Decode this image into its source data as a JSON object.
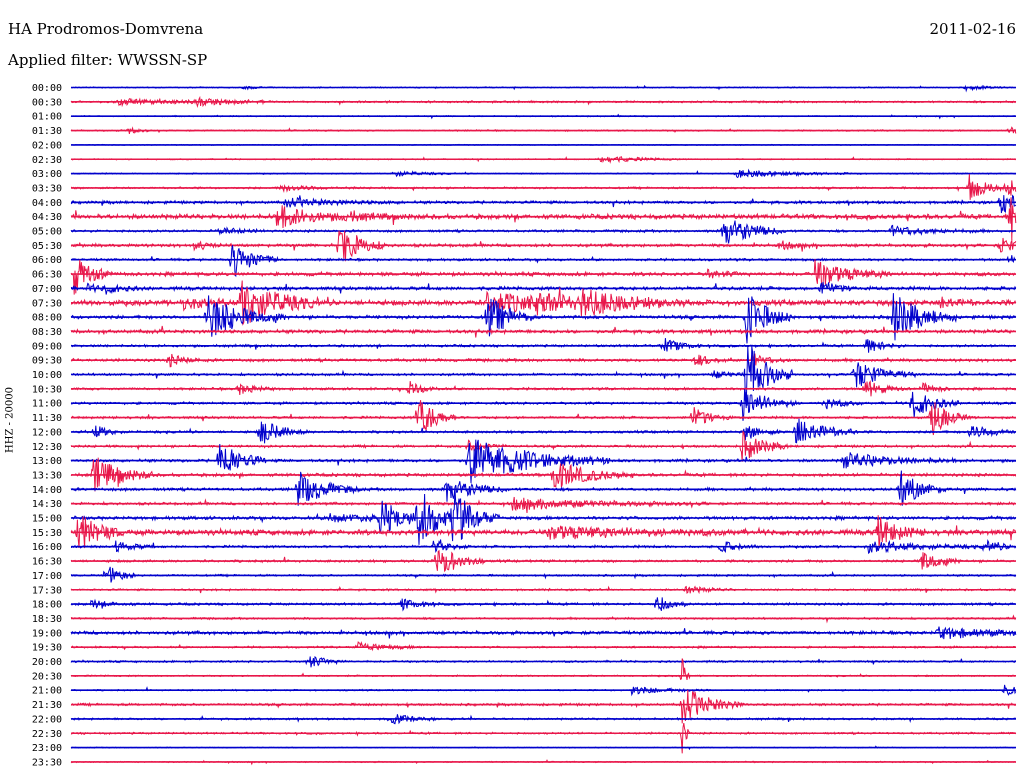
{
  "header": {
    "station": "HA Prodromos-Domvrena",
    "date": "2011-02-16",
    "filter_line": "Applied filter: WWSSN-SP"
  },
  "channel_label": "HHZ - 20000",
  "colors": {
    "trace_even": "#0000cc",
    "trace_odd": "#e8174a",
    "text": "#000000",
    "background": "#ffffff"
  },
  "chart_data": {
    "type": "line",
    "title": "HA Prodromos-Domvrena",
    "ylabel": "HHZ - 20000",
    "row_labels": [
      "00:00",
      "00:30",
      "01:00",
      "01:30",
      "02:00",
      "02:30",
      "03:00",
      "03:30",
      "04:00",
      "04:30",
      "05:00",
      "05:30",
      "06:00",
      "06:30",
      "07:00",
      "07:30",
      "08:00",
      "08:30",
      "09:00",
      "09:30",
      "10:00",
      "10:30",
      "11:00",
      "11:30",
      "12:00",
      "12:30",
      "13:00",
      "13:30",
      "14:00",
      "14:30",
      "15:00",
      "15:30",
      "16:00",
      "16:30",
      "17:00",
      "17:30",
      "18:00",
      "18:30",
      "19:00",
      "19:30",
      "20:00",
      "20:30",
      "21:00",
      "21:30",
      "22:00",
      "22:30",
      "23:00",
      "23:30"
    ],
    "row_minutes": 30,
    "noise": [
      0.5,
      0.8,
      0.5,
      0.6,
      0.4,
      0.5,
      0.5,
      0.8,
      1.2,
      2.0,
      1.0,
      1.3,
      1.0,
      1.5,
      1.4,
      2.2,
      1.4,
      1.5,
      1.0,
      1.2,
      1.0,
      1.0,
      1.0,
      1.0,
      1.0,
      1.0,
      1.2,
      1.3,
      1.2,
      1.1,
      1.4,
      2.2,
      1.0,
      1.0,
      0.8,
      0.8,
      1.0,
      0.8,
      1.4,
      0.8,
      0.8,
      0.6,
      0.6,
      1.0,
      0.8,
      0.8,
      0.4,
      0.5
    ],
    "events": [
      {
        "row": 0,
        "minute": 5.4,
        "amp": 2,
        "dur": 0.4
      },
      {
        "row": 0,
        "minute": 28.4,
        "amp": 3,
        "dur": 0.5
      },
      {
        "row": 1,
        "minute": 1.5,
        "amp": 3,
        "dur": 2.0
      },
      {
        "row": 1,
        "minute": 4.0,
        "amp": 3,
        "dur": 1.0
      },
      {
        "row": 3,
        "minute": 1.8,
        "amp": 4,
        "dur": 0.3
      },
      {
        "row": 3,
        "minute": 29.8,
        "amp": 4,
        "dur": 0.4
      },
      {
        "row": 5,
        "minute": 16.8,
        "amp": 4,
        "dur": 1.0
      },
      {
        "row": 6,
        "minute": 10.2,
        "amp": 3,
        "dur": 0.8
      },
      {
        "row": 6,
        "minute": 21.1,
        "amp": 4,
        "dur": 1.6
      },
      {
        "row": 7,
        "minute": 6.6,
        "amp": 3,
        "dur": 1.0
      },
      {
        "row": 7,
        "minute": 28.5,
        "amp": 14,
        "dur": 0.5
      },
      {
        "row": 7,
        "minute": 29.7,
        "amp": 12,
        "dur": 0.3
      },
      {
        "row": 8,
        "minute": 6.8,
        "amp": 4,
        "dur": 1.5
      },
      {
        "row": 8,
        "minute": 29.5,
        "amp": 14,
        "dur": 0.4
      },
      {
        "row": 9,
        "minute": 6.5,
        "amp": 12,
        "dur": 1.0
      },
      {
        "row": 9,
        "minute": 8.7,
        "amp": 4,
        "dur": 1.0
      },
      {
        "row": 9,
        "minute": 29.8,
        "amp": 26,
        "dur": 0.5
      },
      {
        "row": 10,
        "minute": 4.7,
        "amp": 4,
        "dur": 0.6
      },
      {
        "row": 10,
        "minute": 20.7,
        "amp": 18,
        "dur": 0.8
      },
      {
        "row": 10,
        "minute": 26.0,
        "amp": 5,
        "dur": 1.2
      },
      {
        "row": 11,
        "minute": 3.9,
        "amp": 5,
        "dur": 0.4
      },
      {
        "row": 11,
        "minute": 8.5,
        "amp": 22,
        "dur": 0.6
      },
      {
        "row": 11,
        "minute": 22.5,
        "amp": 4,
        "dur": 0.5
      },
      {
        "row": 11,
        "minute": 29.5,
        "amp": 8,
        "dur": 0.5
      },
      {
        "row": 12,
        "minute": 5.1,
        "amp": 20,
        "dur": 0.6
      },
      {
        "row": 12,
        "minute": 29.8,
        "amp": 5,
        "dur": 0.3
      },
      {
        "row": 13,
        "minute": 0.1,
        "amp": 20,
        "dur": 0.5
      },
      {
        "row": 13,
        "minute": 20.2,
        "amp": 4,
        "dur": 0.5
      },
      {
        "row": 13,
        "minute": 23.6,
        "amp": 14,
        "dur": 1.0
      },
      {
        "row": 14,
        "minute": 0.5,
        "amp": 5,
        "dur": 0.3
      },
      {
        "row": 14,
        "minute": 1.1,
        "amp": 5,
        "dur": 0.5
      },
      {
        "row": 14,
        "minute": 23.8,
        "amp": 8,
        "dur": 0.5
      },
      {
        "row": 15,
        "minute": 3.5,
        "amp": 6,
        "dur": 0.8
      },
      {
        "row": 15,
        "minute": 5.4,
        "amp": 26,
        "dur": 1.0
      },
      {
        "row": 15,
        "minute": 13.2,
        "amp": 10,
        "dur": 2.2
      },
      {
        "row": 15,
        "minute": 14.8,
        "amp": 6,
        "dur": 1.0
      },
      {
        "row": 15,
        "minute": 16.2,
        "amp": 10,
        "dur": 1.5
      },
      {
        "row": 15,
        "minute": 27.6,
        "amp": 6,
        "dur": 0.5
      },
      {
        "row": 16,
        "minute": 4.3,
        "amp": 24,
        "dur": 1.0
      },
      {
        "row": 16,
        "minute": 13.2,
        "amp": 24,
        "dur": 0.6
      },
      {
        "row": 16,
        "minute": 21.4,
        "amp": 30,
        "dur": 0.6
      },
      {
        "row": 16,
        "minute": 26.1,
        "amp": 26,
        "dur": 0.8
      },
      {
        "row": 18,
        "minute": 18.8,
        "amp": 8,
        "dur": 0.5
      },
      {
        "row": 18,
        "minute": 25.2,
        "amp": 8,
        "dur": 0.5
      },
      {
        "row": 19,
        "minute": 3.1,
        "amp": 6,
        "dur": 0.5
      },
      {
        "row": 19,
        "minute": 19.8,
        "amp": 6,
        "dur": 0.5
      },
      {
        "row": 19,
        "minute": 21.6,
        "amp": 6,
        "dur": 0.5
      },
      {
        "row": 20,
        "minute": 20.4,
        "amp": 4,
        "dur": 0.5
      },
      {
        "row": 20,
        "minute": 21.4,
        "amp": 38,
        "dur": 0.6
      },
      {
        "row": 20,
        "minute": 24.8,
        "amp": 16,
        "dur": 0.8
      },
      {
        "row": 21,
        "minute": 5.3,
        "amp": 6,
        "dur": 0.5
      },
      {
        "row": 21,
        "minute": 10.7,
        "amp": 8,
        "dur": 0.4
      },
      {
        "row": 21,
        "minute": 25.2,
        "amp": 10,
        "dur": 0.5
      },
      {
        "row": 21,
        "minute": 27.0,
        "amp": 6,
        "dur": 0.4
      },
      {
        "row": 22,
        "minute": 21.3,
        "amp": 18,
        "dur": 0.7
      },
      {
        "row": 22,
        "minute": 23.9,
        "amp": 6,
        "dur": 0.5
      },
      {
        "row": 22,
        "minute": 26.7,
        "amp": 16,
        "dur": 0.6
      },
      {
        "row": 23,
        "minute": 11.0,
        "amp": 24,
        "dur": 0.5
      },
      {
        "row": 23,
        "minute": 19.7,
        "amp": 12,
        "dur": 0.5
      },
      {
        "row": 23,
        "minute": 27.3,
        "amp": 20,
        "dur": 0.5
      },
      {
        "row": 24,
        "minute": 0.7,
        "amp": 8,
        "dur": 0.4
      },
      {
        "row": 24,
        "minute": 6.0,
        "amp": 14,
        "dur": 0.6
      },
      {
        "row": 24,
        "minute": 21.4,
        "amp": 8,
        "dur": 0.5
      },
      {
        "row": 24,
        "minute": 23.0,
        "amp": 16,
        "dur": 0.8
      },
      {
        "row": 24,
        "minute": 28.5,
        "amp": 6,
        "dur": 1.0
      },
      {
        "row": 25,
        "minute": 12.6,
        "amp": 6,
        "dur": 0.5
      },
      {
        "row": 25,
        "minute": 21.3,
        "amp": 16,
        "dur": 0.6
      },
      {
        "row": 26,
        "minute": 4.7,
        "amp": 22,
        "dur": 0.6
      },
      {
        "row": 26,
        "minute": 12.6,
        "amp": 24,
        "dur": 1.8
      },
      {
        "row": 26,
        "minute": 24.5,
        "amp": 8,
        "dur": 1.5
      },
      {
        "row": 27,
        "minute": 0.7,
        "amp": 20,
        "dur": 0.8
      },
      {
        "row": 27,
        "minute": 15.3,
        "amp": 16,
        "dur": 1.0
      },
      {
        "row": 28,
        "minute": 7.2,
        "amp": 18,
        "dur": 0.8
      },
      {
        "row": 28,
        "minute": 11.9,
        "amp": 14,
        "dur": 0.8
      },
      {
        "row": 28,
        "minute": 26.3,
        "amp": 20,
        "dur": 0.6
      },
      {
        "row": 29,
        "minute": 14.0,
        "amp": 6,
        "dur": 2.5
      },
      {
        "row": 30,
        "minute": 8.2,
        "amp": 4,
        "dur": 2.0
      },
      {
        "row": 30,
        "minute": 9.8,
        "amp": 18,
        "dur": 0.6
      },
      {
        "row": 30,
        "minute": 11.0,
        "amp": 30,
        "dur": 0.6
      },
      {
        "row": 30,
        "minute": 12.1,
        "amp": 28,
        "dur": 0.6
      },
      {
        "row": 31,
        "minute": 0.2,
        "amp": 22,
        "dur": 0.6
      },
      {
        "row": 31,
        "minute": 15.2,
        "amp": 6,
        "dur": 2.5
      },
      {
        "row": 31,
        "minute": 25.6,
        "amp": 16,
        "dur": 0.6
      },
      {
        "row": 32,
        "minute": 1.4,
        "amp": 6,
        "dur": 0.5
      },
      {
        "row": 32,
        "minute": 11.5,
        "amp": 6,
        "dur": 0.5
      },
      {
        "row": 32,
        "minute": 20.6,
        "amp": 6,
        "dur": 0.5
      },
      {
        "row": 32,
        "minute": 25.3,
        "amp": 6,
        "dur": 1.5
      },
      {
        "row": 32,
        "minute": 29.0,
        "amp": 6,
        "dur": 0.5
      },
      {
        "row": 33,
        "minute": 11.6,
        "amp": 18,
        "dur": 0.6
      },
      {
        "row": 33,
        "minute": 27.0,
        "amp": 12,
        "dur": 0.5
      },
      {
        "row": 34,
        "minute": 1.1,
        "amp": 12,
        "dur": 0.4
      },
      {
        "row": 35,
        "minute": 19.5,
        "amp": 4,
        "dur": 0.6
      },
      {
        "row": 36,
        "minute": 0.6,
        "amp": 4,
        "dur": 0.6
      },
      {
        "row": 36,
        "minute": 10.5,
        "amp": 6,
        "dur": 0.5
      },
      {
        "row": 36,
        "minute": 18.6,
        "amp": 10,
        "dur": 0.4
      },
      {
        "row": 38,
        "minute": 27.5,
        "amp": 6,
        "dur": 1.5
      },
      {
        "row": 39,
        "minute": 9.1,
        "amp": 5,
        "dur": 0.8
      },
      {
        "row": 40,
        "minute": 7.5,
        "amp": 7,
        "dur": 0.5
      },
      {
        "row": 41,
        "minute": 19.4,
        "amp": 22,
        "dur": 0.1
      },
      {
        "row": 42,
        "minute": 17.8,
        "amp": 4,
        "dur": 1.0
      },
      {
        "row": 42,
        "minute": 29.6,
        "amp": 8,
        "dur": 0.3
      },
      {
        "row": 43,
        "minute": 19.4,
        "amp": 18,
        "dur": 0.8
      },
      {
        "row": 44,
        "minute": 10.1,
        "amp": 6,
        "dur": 0.6
      },
      {
        "row": 45,
        "minute": 19.4,
        "amp": 22,
        "dur": 0.1
      }
    ]
  }
}
